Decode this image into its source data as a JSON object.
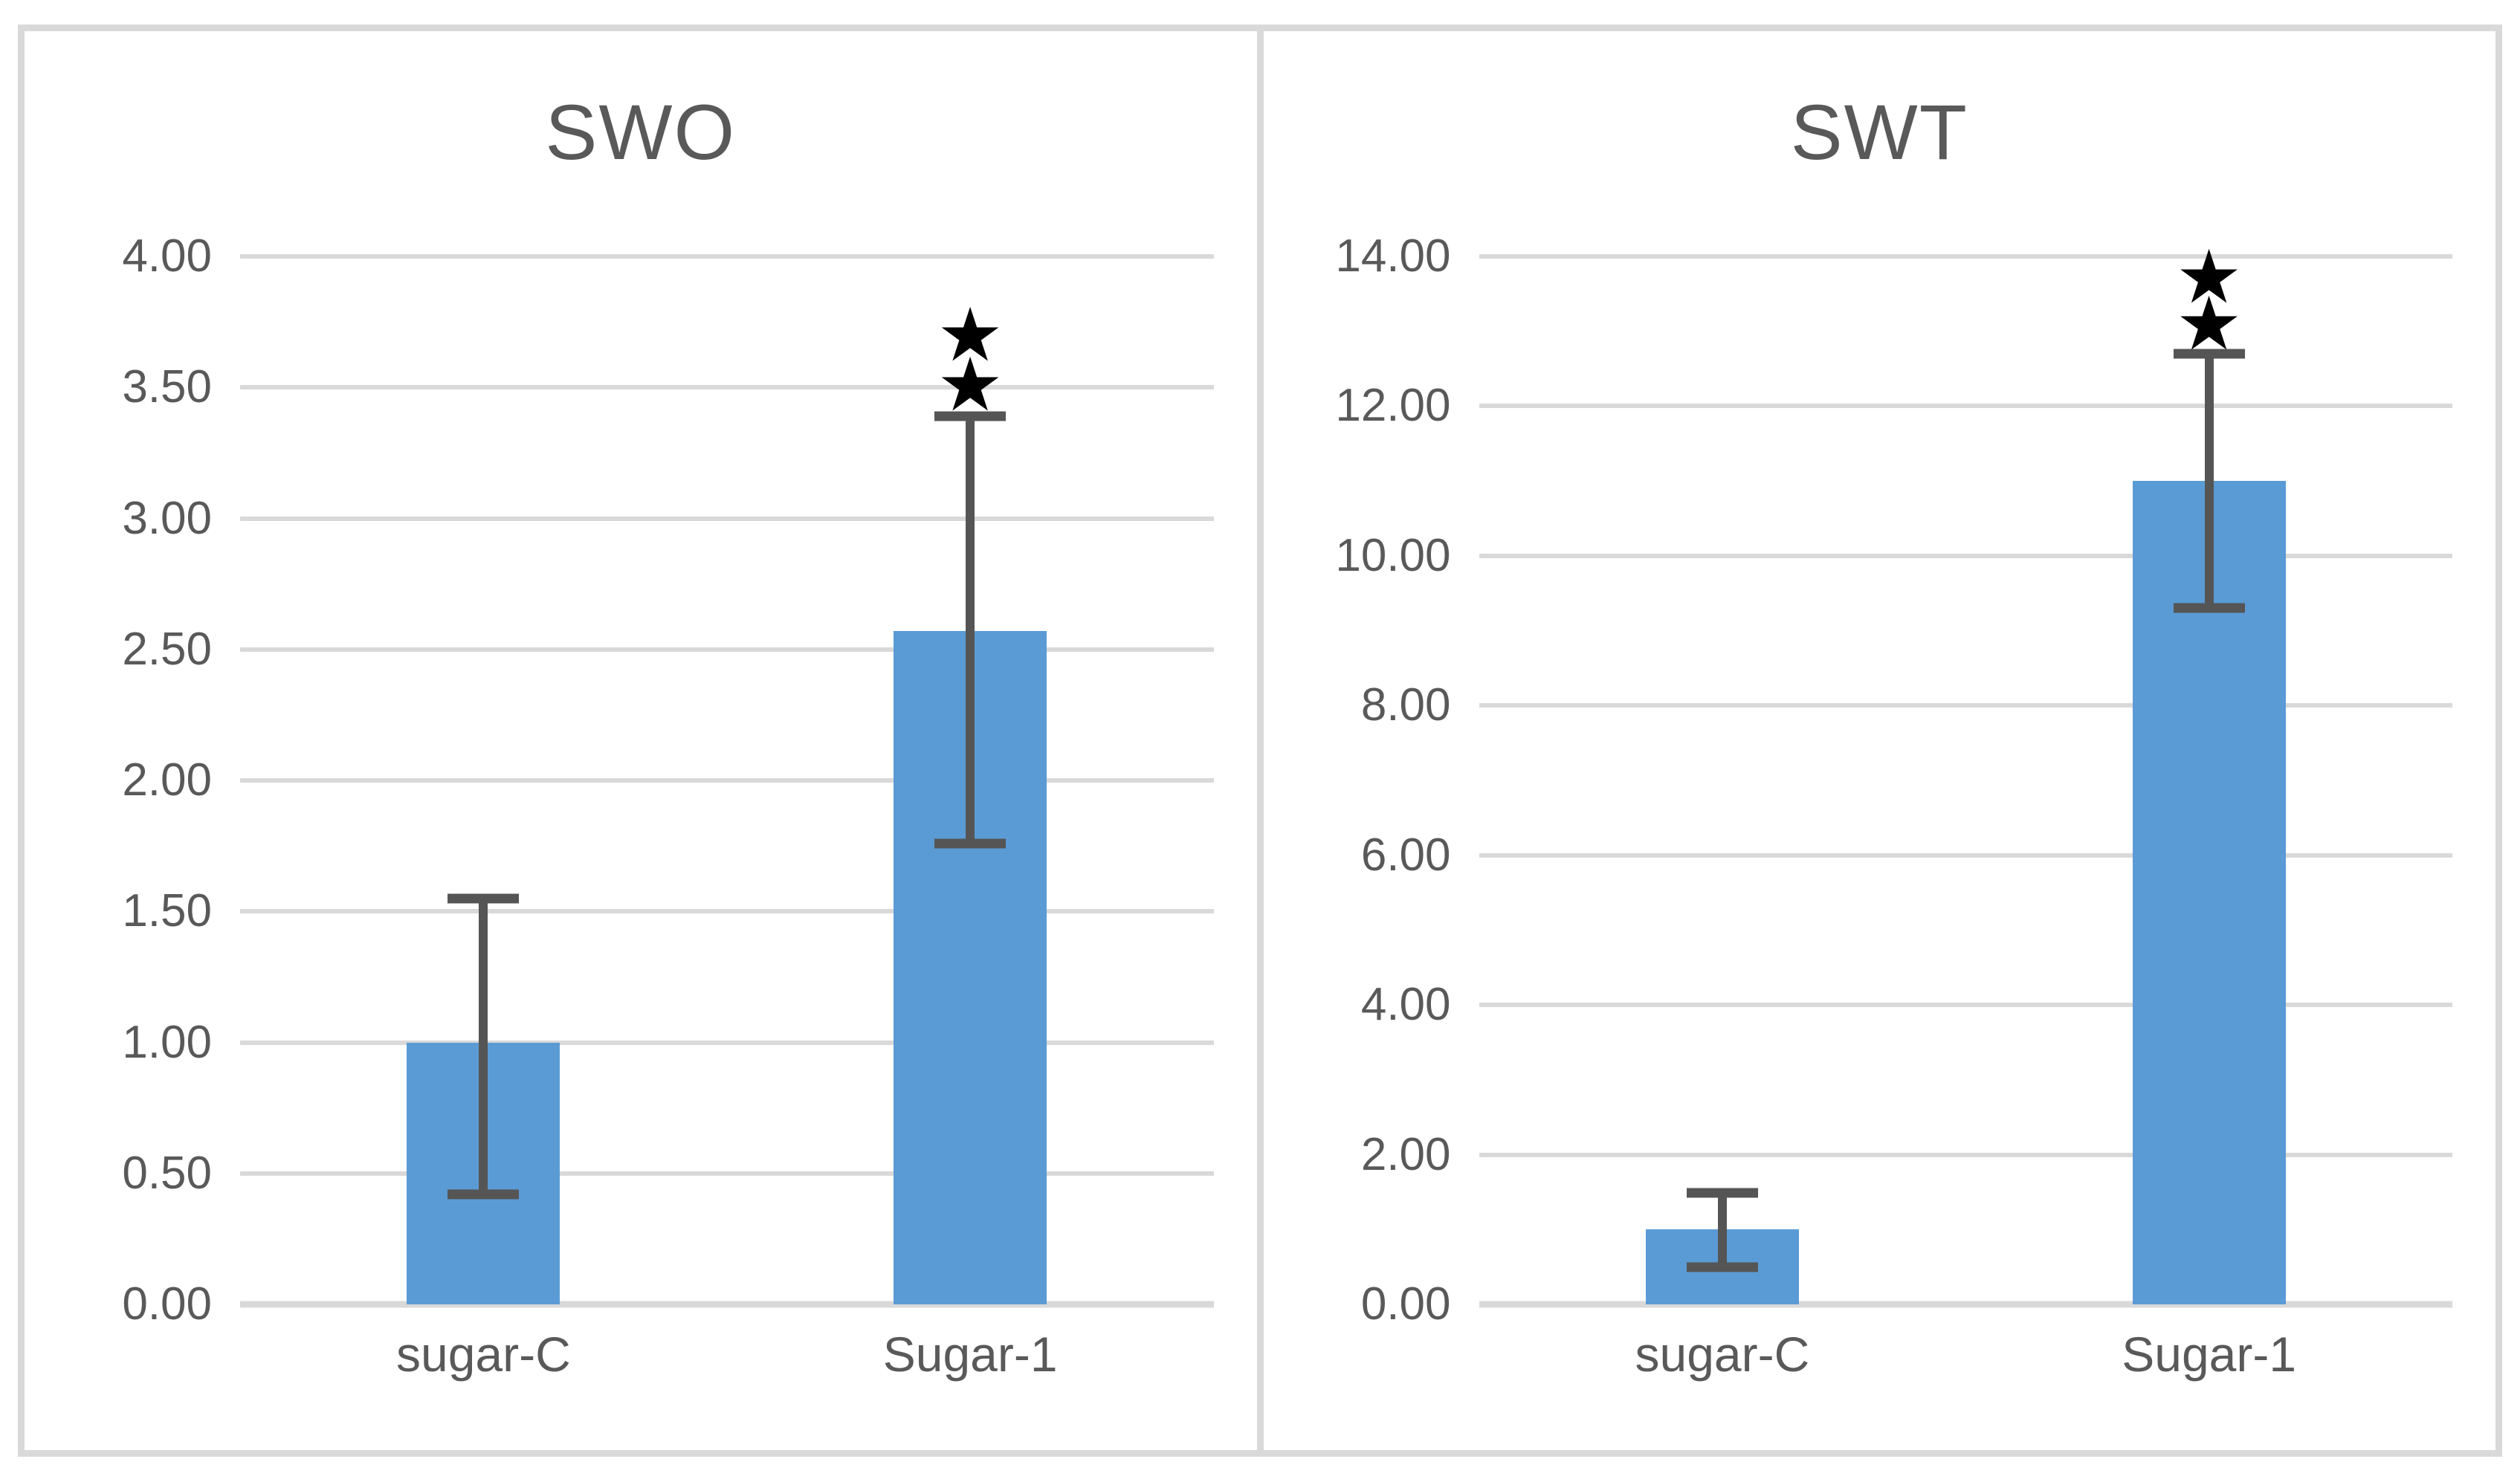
{
  "figure": {
    "background": "#ffffff",
    "frame_color": "#d9d9d9"
  },
  "colors": {
    "bar": "#5b9bd5",
    "gridline": "#d9d9d9",
    "axis_text": "#595959",
    "title_text": "#595959",
    "error_bar": "#555555",
    "star": "#000000",
    "frame": "#d9d9d9"
  },
  "chart_data": [
    {
      "type": "bar",
      "title": "SWO",
      "categories": [
        "sugar-C",
        "Sugar-1"
      ],
      "values": [
        1.0,
        2.57
      ],
      "error_bars": [
        {
          "low": 0.42,
          "high": 1.55
        },
        {
          "low": 1.76,
          "high": 3.39
        }
      ],
      "significance_stars": [
        [],
        [
          3.51,
          3.7
        ]
      ],
      "star_glyph": "★",
      "ylim": [
        0,
        4
      ],
      "ystep": 0.5,
      "ytick_labels": [
        "4.00",
        "3.50",
        "3.00",
        "2.50",
        "2.00",
        "1.50",
        "1.00",
        "0.50",
        "0.00"
      ],
      "grid": true,
      "legend": "none",
      "bar_color": "#5b9bd5"
    },
    {
      "type": "bar",
      "title": "SWT",
      "categories": [
        "sugar-C",
        "Sugar-1"
      ],
      "values": [
        1.0,
        11.0
      ],
      "error_bars": [
        {
          "low": 0.5,
          "high": 1.49
        },
        {
          "low": 9.3,
          "high": 12.7
        }
      ],
      "significance_stars": [
        [],
        [
          13.1,
          13.72
        ]
      ],
      "star_glyph": "★",
      "ylim": [
        0,
        14
      ],
      "ystep": 2,
      "ytick_labels": [
        "14.00",
        "12.00",
        "10.00",
        "8.00",
        "6.00",
        "4.00",
        "2.00",
        "0.00"
      ],
      "grid": true,
      "legend": "none",
      "bar_color": "#5b9bd5"
    }
  ]
}
